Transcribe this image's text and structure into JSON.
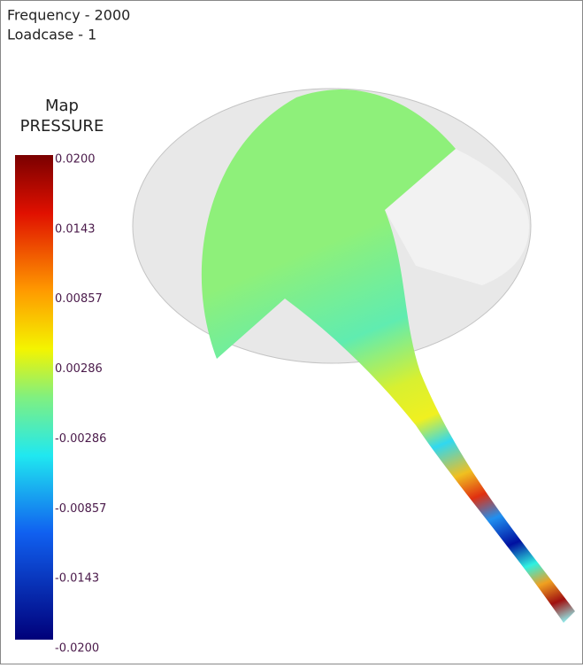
{
  "header": {
    "lines": [
      "Frequency - 2000",
      "Loadcase - 1"
    ]
  },
  "legend": {
    "title": [
      "Map",
      "PRESSURE"
    ],
    "ticks": [
      "0.0200",
      "0.0143",
      "0.00857",
      "0.00286",
      "-0.00286",
      "-0.00857",
      "-0.0143",
      "-0.0200"
    ]
  }
}
